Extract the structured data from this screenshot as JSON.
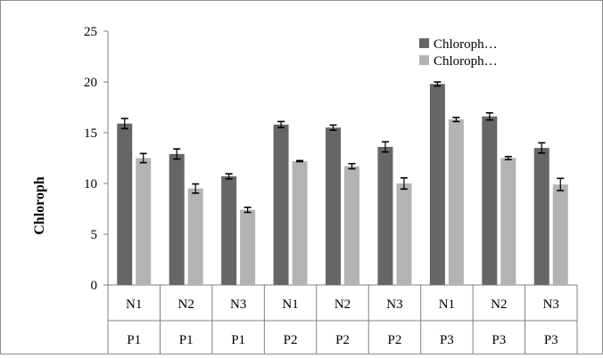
{
  "chart_data": {
    "type": "bar",
    "ylabel": "Chloroph",
    "xlabel": "",
    "ylim": [
      0,
      25
    ],
    "yticks": [
      0,
      5,
      10,
      15,
      20,
      25
    ],
    "grid": false,
    "legend_position": "top-right",
    "categories": [
      {
        "n": "N1",
        "p": "P1"
      },
      {
        "n": "N2",
        "p": "P1"
      },
      {
        "n": "N3",
        "p": "P1"
      },
      {
        "n": "N1",
        "p": "P2"
      },
      {
        "n": "N2",
        "p": "P2"
      },
      {
        "n": "N3",
        "p": "P2"
      },
      {
        "n": "N1",
        "p": "P3"
      },
      {
        "n": "N2",
        "p": "P3"
      },
      {
        "n": "N3",
        "p": "P3"
      }
    ],
    "series": [
      {
        "name": "Chloroph…",
        "color": "#666666",
        "values": [
          15.9,
          12.9,
          10.7,
          15.8,
          15.5,
          13.6,
          19.8,
          16.6,
          13.5
        ],
        "errors": [
          0.5,
          0.5,
          0.25,
          0.3,
          0.25,
          0.5,
          0.2,
          0.35,
          0.5
        ]
      },
      {
        "name": "Chloroph…",
        "color": "#b3b3b3",
        "values": [
          12.5,
          9.5,
          7.4,
          12.2,
          11.7,
          10.0,
          16.3,
          12.5,
          9.9
        ],
        "errors": [
          0.45,
          0.45,
          0.25,
          0.05,
          0.25,
          0.55,
          0.2,
          0.15,
          0.6
        ]
      }
    ]
  }
}
